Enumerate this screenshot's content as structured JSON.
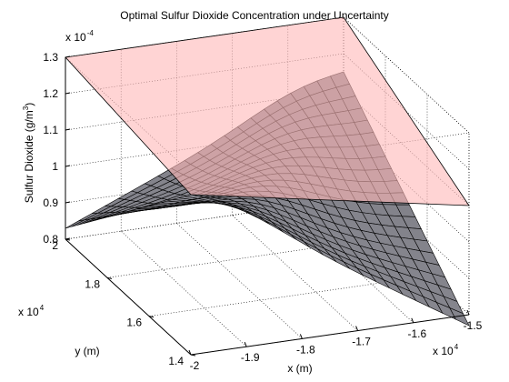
{
  "chart_data": {
    "type": "surface",
    "title": "Optimal Sulfur Dioxide Concentration under Uncertainty",
    "xlabel": "x (m)",
    "ylabel": "y (m)",
    "zlabel_main": "Sulfur Dioxide (g/m",
    "zlabel_sup": "3",
    "zlabel_close": ")",
    "x_exponent_base": "x 10",
    "x_exponent_power": "4",
    "y_exponent_base": "x 10",
    "y_exponent_power": "4",
    "z_exponent_base": "x 10",
    "z_exponent_power": "-4",
    "xlim": [
      -2,
      -1.5
    ],
    "ylim": [
      1.4,
      2
    ],
    "zlim": [
      0.8,
      1.3
    ],
    "x_ticks": [
      {
        "value": -2,
        "label": "-2"
      },
      {
        "value": -1.9,
        "label": "-1.9"
      },
      {
        "value": -1.8,
        "label": "-1.8"
      },
      {
        "value": -1.7,
        "label": "-1.7"
      },
      {
        "value": -1.6,
        "label": "-1.6"
      },
      {
        "value": -1.5,
        "label": "-1.5"
      }
    ],
    "y_ticks": [
      {
        "value": 1.4,
        "label": "1.4"
      },
      {
        "value": 1.6,
        "label": "1.6"
      },
      {
        "value": 1.8,
        "label": "1.8"
      },
      {
        "value": 2,
        "label": "2"
      }
    ],
    "z_ticks": [
      {
        "value": 0.8,
        "label": "0.8"
      },
      {
        "value": 0.9,
        "label": "0.9"
      },
      {
        "value": 1.0,
        "label": "1"
      },
      {
        "value": 1.1,
        "label": "1.1"
      },
      {
        "value": 1.2,
        "label": "1.2"
      },
      {
        "value": 1.3,
        "label": "1.3"
      }
    ],
    "grid": true,
    "upper_plane": {
      "color": "#ffb8b8",
      "opacity": 0.6,
      "corners": [
        {
          "x": -2,
          "y": 1.4,
          "z": 1.24
        },
        {
          "x": -1.5,
          "y": 1.4,
          "z": 1.1
        },
        {
          "x": -1.5,
          "y": 2,
          "z": 1.3
        },
        {
          "x": -2,
          "y": 2,
          "z": 1.3
        }
      ]
    },
    "surface": {
      "color": "#8c8c94",
      "edge_color": "#000000",
      "grid_n": 21,
      "corners": {
        "x_min_y_min": 1.24,
        "x_max_y_min": 0.77,
        "x_min_y_max": 0.83,
        "x_max_y_max": 1.15
      },
      "ridge_amplitude": 0.06
    }
  }
}
